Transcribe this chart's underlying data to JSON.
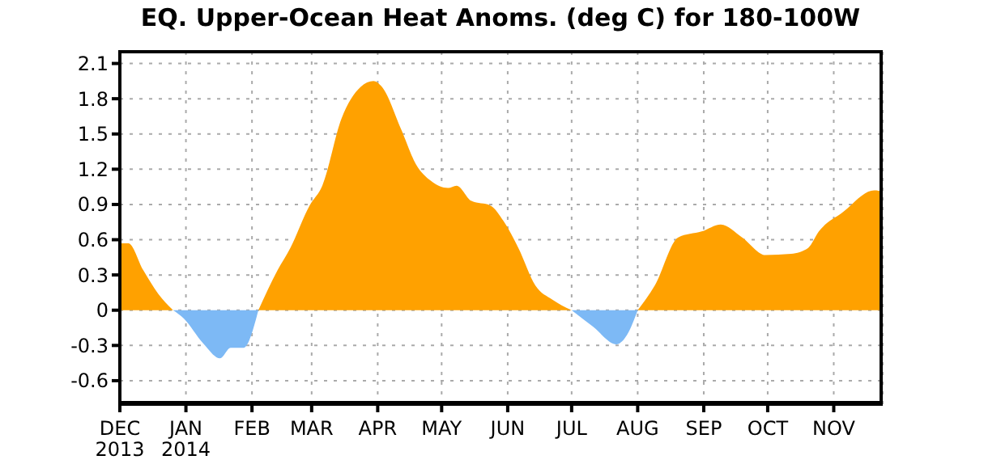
{
  "chart_data": {
    "type": "area",
    "title": "EQ. Upper-Ocean Heat Anoms. (deg C) for 180-100W",
    "series": [
      {
        "color": "#ffa100",
        "x": [
          "2013-12-01",
          "2013-12-05",
          "2013-12-12",
          "2013-12-19",
          "2013-12-26",
          "2014-02-04",
          "2014-02-13",
          "2014-02-19",
          "2014-02-28",
          "2014-03-06",
          "2014-03-15",
          "2014-03-24",
          "2014-03-30",
          "2014-04-03",
          "2014-04-12",
          "2014-04-19",
          "2014-04-26",
          "2014-05-04",
          "2014-05-08",
          "2014-05-15",
          "2014-05-24",
          "2014-05-30",
          "2014-06-06",
          "2014-06-14",
          "2014-06-22",
          "2014-07-01",
          "2014-08-01",
          "2014-08-09",
          "2014-08-20",
          "2014-08-31",
          "2014-09-09",
          "2014-09-19",
          "2014-09-30",
          "2014-10-12",
          "2014-10-20",
          "2014-10-25",
          "2014-11-05",
          "2014-11-20",
          "2014-11-24"
        ],
        "values": [
          0.57,
          0.57,
          0.34,
          0.14,
          0,
          0,
          0.34,
          0.53,
          0.89,
          1.06,
          1.63,
          1.9,
          1.95,
          1.9,
          1.54,
          1.24,
          1.1,
          1.04,
          1.06,
          0.93,
          0.89,
          0.76,
          0.53,
          0.21,
          0.09,
          0,
          0,
          0.21,
          0.62,
          0.67,
          0.73,
          0.62,
          0.47,
          0.48,
          0.53,
          0.67,
          0.83,
          1.02,
          1.01
        ]
      },
      {
        "color": "#7db9f5",
        "x": [
          "2013-12-26",
          "2013-12-31",
          "2014-01-09",
          "2014-01-17",
          "2014-01-22",
          "2014-01-28",
          "2014-02-04",
          "2014-07-01",
          "2014-07-11",
          "2014-07-22",
          "2014-07-27",
          "2014-08-01"
        ],
        "values": [
          0,
          -0.07,
          -0.28,
          -0.41,
          -0.32,
          -0.32,
          0,
          0,
          -0.14,
          -0.29,
          -0.21,
          0
        ]
      }
    ],
    "xlim": [
      "2013-12-01",
      "2014-11-24"
    ],
    "xticks": [
      {
        "value": "2013-12-01",
        "label": "DEC 2013"
      },
      {
        "value": "2014-01-01",
        "label": "JAN 2014"
      },
      {
        "value": "2014-02-01",
        "label": "FEB"
      },
      {
        "value": "2014-03-01",
        "label": "MAR"
      },
      {
        "value": "2014-04-01",
        "label": "APR"
      },
      {
        "value": "2014-05-01",
        "label": "MAY"
      },
      {
        "value": "2014-06-01",
        "label": "JUN"
      },
      {
        "value": "2014-07-01",
        "label": "JUL"
      },
      {
        "value": "2014-08-01",
        "label": "AUG"
      },
      {
        "value": "2014-09-01",
        "label": "SEP"
      },
      {
        "value": "2014-10-01",
        "label": "OCT"
      },
      {
        "value": "2014-11-01",
        "label": "NOV"
      }
    ],
    "ylim": [
      -0.8,
      2.2
    ],
    "yticks": [
      -0.6,
      -0.3,
      0,
      0.3,
      0.6,
      0.9,
      1.2,
      1.5,
      1.8,
      2.1
    ],
    "grid": true
  }
}
